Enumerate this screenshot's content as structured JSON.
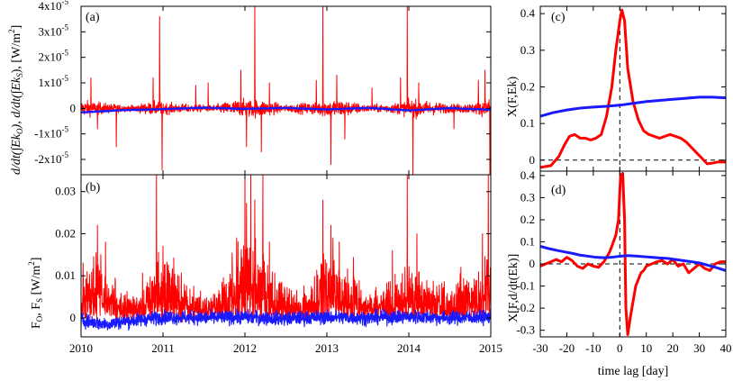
{
  "colors": {
    "red": "#ff0000",
    "blue": "#1a1aff",
    "frame": "#000000",
    "dash": "#000000"
  },
  "chart_data": [
    {
      "type": "line",
      "panel": "(a)",
      "ylabel": "d/dt(∫Ek_O),  d/dt(∫Ek_S),  [W/m²]",
      "xlim": [
        2010,
        2015
      ],
      "ylim": [
        -2.6e-05,
        4e-05
      ],
      "grid": false,
      "xticks": [
        2010,
        2011,
        2012,
        2013,
        2014,
        2015
      ],
      "yticks": [
        {
          "v": 4e-05,
          "t": "4x10",
          "e": "-5"
        },
        {
          "v": 3e-05,
          "t": "3x10",
          "e": "-5"
        },
        {
          "v": 2e-05,
          "t": "2x10",
          "e": "-5"
        },
        {
          "v": 1e-05,
          "t": "1x10",
          "e": "-5"
        },
        {
          "v": 0,
          "t": "0",
          "e": ""
        },
        {
          "v": -1e-05,
          "t": "-1x10",
          "e": "-5"
        },
        {
          "v": -2e-05,
          "t": "-2x10",
          "e": "-5"
        }
      ],
      "series": [
        {
          "color": "red",
          "noise": 1.6e-06,
          "envelope": {
            "x": [
              2010,
              2010.3,
              2010.6,
              2010.9,
              2011.2,
              2011.6,
              2011.9,
              2012.2,
              2012.5,
              2012.8,
              2013.1,
              2013.5,
              2013.8,
              2014.1,
              2014.5,
              2014.8,
              2015
            ],
            "y": [
              2.4e-06,
              1.5e-06,
              8e-07,
              2e-06,
              1.3e-06,
              9e-07,
              2.5e-06,
              2.6e-06,
              1e-06,
              1.8e-06,
              2.8e-06,
              1e-06,
              1.4e-06,
              2.6e-06,
              1.2e-06,
              1.6e-06,
              2.8e-06
            ]
          },
          "spikes": [
            [
              2010.12,
              1.2e-05
            ],
            [
              2010.2,
              -8e-06
            ],
            [
              2010.43,
              -1.5e-05
            ],
            [
              2010.88,
              1.2e-05
            ],
            [
              2010.96,
              3.6e-05
            ],
            [
              2010.99,
              -2.4e-05
            ],
            [
              2011.4,
              9e-06
            ],
            [
              2011.55,
              1e-05
            ],
            [
              2011.95,
              1.5e-05
            ],
            [
              2012.02,
              -1.5e-05
            ],
            [
              2012.12,
              4e-05
            ],
            [
              2012.2,
              -1.7e-05
            ],
            [
              2012.3,
              1e-05
            ],
            [
              2012.87,
              1.1e-05
            ],
            [
              2012.95,
              4e-05
            ],
            [
              2013.05,
              -2.2e-05
            ],
            [
              2013.12,
              1.3e-05
            ],
            [
              2013.22,
              -1.2e-05
            ],
            [
              2013.55,
              8e-06
            ],
            [
              2013.9,
              1.2e-05
            ],
            [
              2013.98,
              4e-05
            ],
            [
              2014.05,
              -2.6e-05
            ],
            [
              2014.12,
              1e-05
            ],
            [
              2014.55,
              -8e-06
            ],
            [
              2014.85,
              1.1e-05
            ],
            [
              2014.93,
              1.5e-05
            ],
            [
              2014.99,
              -2.6e-05
            ]
          ]
        },
        {
          "color": "blue",
          "noise": 1.2e-07,
          "points": [
            [
              2010,
              -1.6e-06
            ],
            [
              2010.5,
              -7e-07
            ],
            [
              2011,
              -3e-07
            ],
            [
              2011.5,
              3e-07
            ],
            [
              2012,
              -2e-07
            ],
            [
              2012.5,
              2e-07
            ],
            [
              2013,
              -4e-07
            ],
            [
              2013.5,
              2e-07
            ],
            [
              2014,
              -8e-07
            ],
            [
              2014.5,
              1e-07
            ],
            [
              2015,
              -5e-07
            ]
          ]
        }
      ]
    },
    {
      "type": "line",
      "panel": "(b)",
      "ylabel": "F_O,  F_S  [W/m²]",
      "xlim": [
        2010,
        2015
      ],
      "ylim": [
        -0.0045,
        0.034
      ],
      "grid": false,
      "xticks": [
        2010,
        2011,
        2012,
        2013,
        2014,
        2015
      ],
      "xticklabels": [
        "2010",
        "2011",
        "2012",
        "2013",
        "2014",
        "2015"
      ],
      "yticks": [
        {
          "v": 0.03,
          "t": "0.03"
        },
        {
          "v": 0.02,
          "t": "0.02"
        },
        {
          "v": 0.01,
          "t": "0.01"
        },
        {
          "v": 0,
          "t": "0"
        }
      ],
      "series": [
        {
          "color": "red",
          "noise": 0.0025,
          "envelope": {
            "x": [
              2010,
              2010.2,
              2010.5,
              2010.8,
              2011,
              2011.2,
              2011.5,
              2011.8,
              2012,
              2012.15,
              2012.35,
              2012.6,
              2012.8,
              2013,
              2013.2,
              2013.5,
              2013.8,
              2014,
              2014.2,
              2014.5,
              2014.8,
              2015
            ],
            "y": [
              0.009,
              0.01,
              0.004,
              0.006,
              0.012,
              0.007,
              0.003,
              0.008,
              0.016,
              0.012,
              0.008,
              0.004,
              0.006,
              0.013,
              0.011,
              0.004,
              0.007,
              0.01,
              0.008,
              0.004,
              0.01,
              0.012
            ]
          },
          "spikes": [
            [
              2010.2,
              0.022
            ],
            [
              2010.3,
              0.018
            ],
            [
              2010.92,
              0.034
            ],
            [
              2011.0,
              0.017
            ],
            [
              2011.9,
              0.019
            ],
            [
              2012.0,
              0.034
            ],
            [
              2012.07,
              0.034
            ],
            [
              2012.12,
              0.028
            ],
            [
              2012.22,
              0.034
            ],
            [
              2012.3,
              0.018
            ],
            [
              2012.95,
              0.028
            ],
            [
              2013.05,
              0.022
            ],
            [
              2013.15,
              0.018
            ],
            [
              2013.8,
              0.016
            ],
            [
              2013.98,
              0.034
            ],
            [
              2014.1,
              0.02
            ],
            [
              2014.9,
              0.02
            ],
            [
              2014.97,
              0.034
            ]
          ]
        },
        {
          "color": "blue",
          "noise": 0.0011,
          "points": [
            [
              2010,
              -0.0005
            ],
            [
              2010.3,
              -0.0015
            ],
            [
              2010.5,
              -0.0009
            ],
            [
              2011,
              0.0002
            ],
            [
              2011.5,
              0.0
            ],
            [
              2012,
              0.0002
            ],
            [
              2012.5,
              -0.0002
            ],
            [
              2013,
              0.0002
            ],
            [
              2013.5,
              0.0
            ],
            [
              2014,
              0.0003
            ],
            [
              2014.5,
              0.0
            ],
            [
              2015,
              0.0002
            ]
          ]
        }
      ]
    },
    {
      "type": "line",
      "panel": "(c)",
      "ylabel": "X(F,Ek)",
      "xlim": [
        -30,
        40
      ],
      "ylim": [
        -0.03,
        0.42
      ],
      "grid": false,
      "xticks": [
        -30,
        -20,
        -10,
        0,
        10,
        20,
        30,
        40
      ],
      "yticks": [
        {
          "v": 0.4,
          "t": "0.4"
        },
        {
          "v": 0.3,
          "t": "0.3"
        },
        {
          "v": 0.2,
          "t": "0.2"
        },
        {
          "v": 0.1,
          "t": "0.1"
        },
        {
          "v": 0,
          "t": "0"
        }
      ],
      "series": [
        {
          "color": "red",
          "points": [
            [
              -30,
              -0.02
            ],
            [
              -26,
              -0.015
            ],
            [
              -23,
              0.01
            ],
            [
              -21,
              0.04
            ],
            [
              -19,
              0.065
            ],
            [
              -17,
              0.07
            ],
            [
              -15,
              0.06
            ],
            [
              -13,
              0.06
            ],
            [
              -11,
              0.055
            ],
            [
              -9,
              0.06
            ],
            [
              -7,
              0.07
            ],
            [
              -5,
              0.12
            ],
            [
              -3,
              0.2
            ],
            [
              -1.5,
              0.3
            ],
            [
              0,
              0.38
            ],
            [
              0.8,
              0.41
            ],
            [
              1.8,
              0.38
            ],
            [
              3,
              0.25
            ],
            [
              5,
              0.16
            ],
            [
              7,
              0.11
            ],
            [
              9,
              0.08
            ],
            [
              11,
              0.07
            ],
            [
              13,
              0.065
            ],
            [
              15,
              0.06
            ],
            [
              17,
              0.065
            ],
            [
              19,
              0.07
            ],
            [
              21,
              0.065
            ],
            [
              23,
              0.06
            ],
            [
              25,
              0.05
            ],
            [
              27,
              0.035
            ],
            [
              29,
              0.02
            ],
            [
              31,
              0.005
            ],
            [
              33,
              -0.01
            ],
            [
              35,
              -0.008
            ],
            [
              37,
              -0.005
            ],
            [
              40,
              -0.005
            ]
          ]
        },
        {
          "color": "blue",
          "points": [
            [
              -30,
              0.12
            ],
            [
              -25,
              0.13
            ],
            [
              -20,
              0.137
            ],
            [
              -15,
              0.142
            ],
            [
              -10,
              0.145
            ],
            [
              -5,
              0.147
            ],
            [
              0,
              0.15
            ],
            [
              5,
              0.155
            ],
            [
              10,
              0.16
            ],
            [
              15,
              0.163
            ],
            [
              20,
              0.166
            ],
            [
              25,
              0.169
            ],
            [
              30,
              0.172
            ],
            [
              35,
              0.172
            ],
            [
              40,
              0.17
            ]
          ]
        }
      ]
    },
    {
      "type": "line",
      "panel": "(d)",
      "ylabel": "X[F,d/dt(Ek)]",
      "xlabel": "time lag  [day]",
      "xlim": [
        -30,
        40
      ],
      "ylim": [
        -0.33,
        0.42
      ],
      "grid": false,
      "xticks": [
        -30,
        -20,
        -10,
        0,
        10,
        20,
        30,
        40
      ],
      "xticklabels": [
        "-30",
        "-20",
        "-10",
        "0",
        "10",
        "20",
        "30",
        "40"
      ],
      "yticks": [
        {
          "v": 0.4,
          "t": "0.4"
        },
        {
          "v": 0.3,
          "t": "0.3"
        },
        {
          "v": 0.2,
          "t": "0.2"
        },
        {
          "v": 0.1,
          "t": "0.1"
        },
        {
          "v": 0,
          "t": "0"
        },
        {
          "v": -0.1,
          "t": "-0.1"
        },
        {
          "v": -0.2,
          "t": "-0.2"
        },
        {
          "v": -0.3,
          "t": "-0.3"
        }
      ],
      "series": [
        {
          "color": "red",
          "points": [
            [
              -30,
              -0.01
            ],
            [
              -28,
              0.0
            ],
            [
              -26,
              0.01
            ],
            [
              -24,
              0.02
            ],
            [
              -22,
              0.01
            ],
            [
              -20,
              0.03
            ],
            [
              -18,
              0.015
            ],
            [
              -16,
              -0.01
            ],
            [
              -14,
              -0.02
            ],
            [
              -12,
              0.0
            ],
            [
              -10,
              -0.01
            ],
            [
              -8,
              -0.015
            ],
            [
              -6,
              0.01
            ],
            [
              -4,
              0.05
            ],
            [
              -3,
              0.08
            ],
            [
              -1.5,
              0.13
            ],
            [
              -0.5,
              0.2
            ],
            [
              0.3,
              0.4
            ],
            [
              1.1,
              0.41
            ],
            [
              1.8,
              0.2
            ],
            [
              2.3,
              -0.2
            ],
            [
              3,
              -0.32
            ],
            [
              4,
              -0.24
            ],
            [
              5,
              -0.17
            ],
            [
              6,
              -0.1
            ],
            [
              7,
              -0.07
            ],
            [
              8,
              -0.04
            ],
            [
              9,
              -0.03
            ],
            [
              10,
              -0.01
            ],
            [
              12,
              0.0
            ],
            [
              14,
              0.01
            ],
            [
              16,
              0.015
            ],
            [
              18,
              0.0
            ],
            [
              20,
              0.02
            ],
            [
              22,
              -0.01
            ],
            [
              24,
              0.0
            ],
            [
              26,
              -0.04
            ],
            [
              28,
              -0.02
            ],
            [
              30,
              0.0
            ],
            [
              32,
              -0.02
            ],
            [
              34,
              -0.03
            ],
            [
              36,
              0.0
            ],
            [
              38,
              0.01
            ],
            [
              40,
              0.01
            ]
          ]
        },
        {
          "color": "blue",
          "points": [
            [
              -30,
              0.08
            ],
            [
              -27,
              0.07
            ],
            [
              -24,
              0.062
            ],
            [
              -21,
              0.055
            ],
            [
              -18,
              0.048
            ],
            [
              -15,
              0.04
            ],
            [
              -12,
              0.035
            ],
            [
              -9,
              0.03
            ],
            [
              -6,
              0.028
            ],
            [
              -3,
              0.03
            ],
            [
              0,
              0.035
            ],
            [
              3,
              0.038
            ],
            [
              6,
              0.036
            ],
            [
              9,
              0.033
            ],
            [
              12,
              0.03
            ],
            [
              15,
              0.027
            ],
            [
              18,
              0.025
            ],
            [
              21,
              0.02
            ],
            [
              24,
              0.015
            ],
            [
              27,
              0.01
            ],
            [
              30,
              0.005
            ],
            [
              33,
              -0.005
            ],
            [
              36,
              -0.015
            ],
            [
              40,
              -0.03
            ]
          ]
        }
      ]
    }
  ]
}
